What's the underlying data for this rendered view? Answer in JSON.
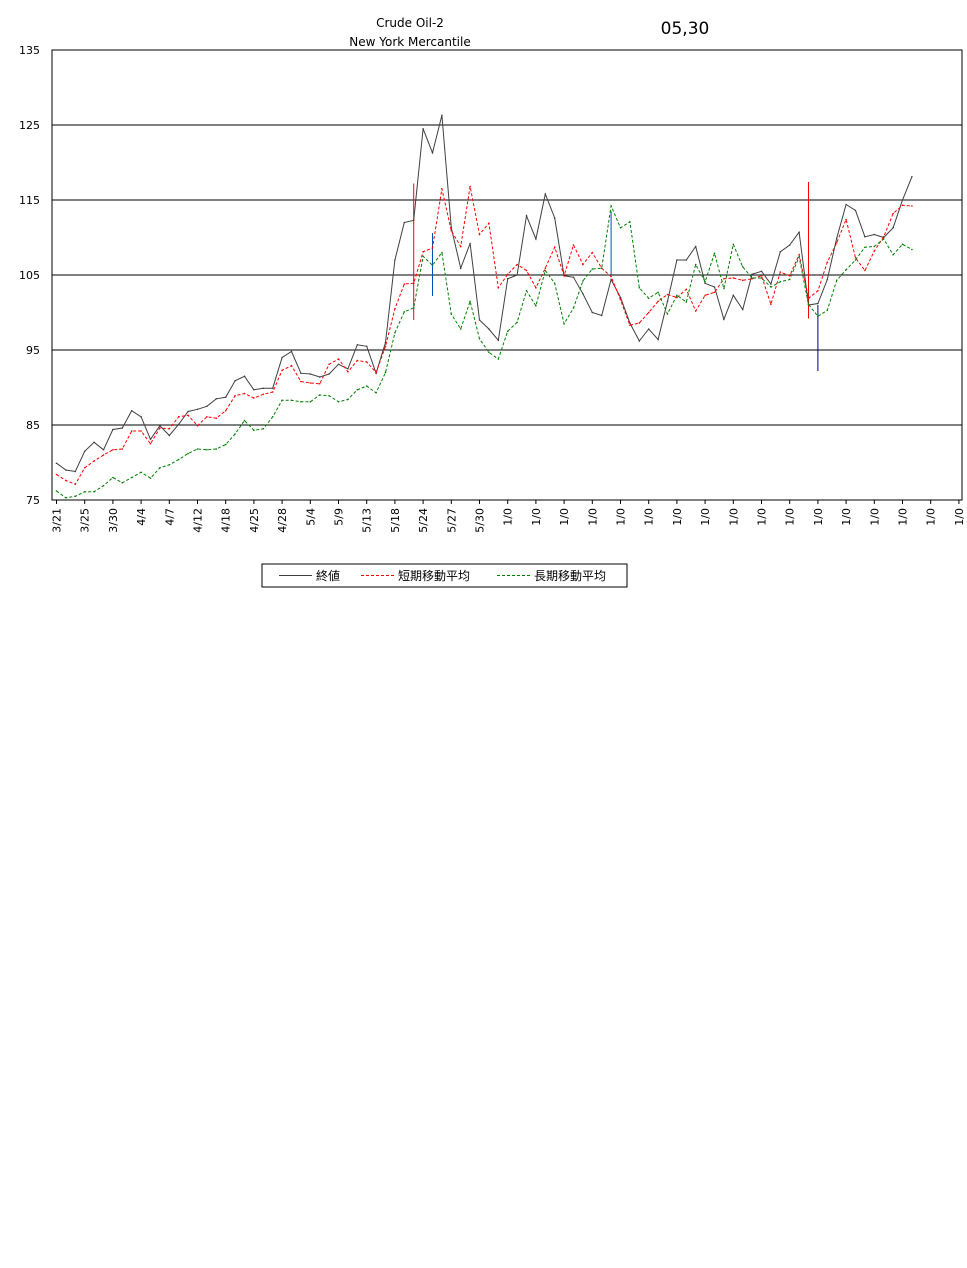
{
  "header": {
    "title": "Crude Oil-2",
    "subtitle": "New York Mercantile",
    "date": "05,30"
  },
  "chart_data": {
    "type": "line",
    "title": "Crude Oil-2",
    "subtitle": "New York Mercantile",
    "ylim": [
      75,
      135
    ],
    "yticks": [
      75,
      85,
      95,
      105,
      115,
      125,
      135
    ],
    "grid": true,
    "legend_position": "bottom",
    "x_tick_labels": [
      "3/21",
      "3/25",
      "3/30",
      "4/4",
      "4/7",
      "4/12",
      "4/18",
      "4/25",
      "4/28",
      "5/4",
      "5/9",
      "5/13",
      "5/18",
      "5/24",
      "5/27",
      "5/30",
      "1/0",
      "1/0",
      "1/0",
      "1/0",
      "1/0",
      "1/0",
      "1/0",
      "1/0",
      "1/0",
      "1/0",
      "1/0",
      "1/0",
      "1/0",
      "1/0",
      "1/0",
      "1/0",
      "1/0",
      "1/0"
    ],
    "series": [
      {
        "name": "終値",
        "color": "#404040",
        "style": "solid",
        "values": [
          79.9,
          79,
          78.8,
          81.5,
          82.7,
          81.7,
          84.4,
          84.6,
          86.9,
          86.1,
          83.1,
          84.9,
          83.6,
          85.1,
          86.8,
          87.1,
          87.5,
          88.5,
          88.7,
          90.9,
          91.5,
          89.7,
          89.9,
          89.9,
          94,
          94.8,
          91.9,
          91.8,
          91.4,
          91.8,
          93.1,
          92.5,
          95.7,
          95.5,
          91.9,
          96,
          107,
          112,
          112.3,
          124.5,
          121.3,
          126.3,
          111.3,
          105.9,
          109.2,
          99,
          97.8,
          96.3,
          104.5,
          105,
          112.9,
          109.8,
          115.8,
          112.6,
          104.9,
          104.7,
          102.5,
          100,
          99.6,
          104.4,
          102,
          98.6,
          96.2,
          97.8,
          96.4,
          101.5,
          107,
          107,
          108.8,
          103.9,
          103.4,
          99.1,
          102.3,
          100.4,
          105.1,
          105.5,
          103.8,
          108.1,
          109,
          110.7,
          101,
          101.2,
          104.4,
          109.9,
          114.4,
          113.6,
          110.1,
          110.4,
          110,
          111.3,
          115,
          118.1
        ]
      },
      {
        "name": "短期移動平均",
        "color": "#ff0000",
        "style": "dashed",
        "values": [
          78.4,
          77.6,
          77.1,
          79.3,
          80.2,
          81,
          81.7,
          81.8,
          84.2,
          84.2,
          82.5,
          84.6,
          84.5,
          86.1,
          86.3,
          84.9,
          86.1,
          85.9,
          86.9,
          88.9,
          89.2,
          88.6,
          89.1,
          89.4,
          92.3,
          92.9,
          90.8,
          90.6,
          90.5,
          93.1,
          93.8,
          92.1,
          93.6,
          93.4,
          92,
          95.5,
          100.5,
          103.8,
          103.9,
          108.1,
          108.6,
          116.5,
          110.9,
          108.8,
          116.8,
          110.4,
          111.9,
          103.3,
          105.1,
          106.4,
          105.6,
          103.3,
          105.9,
          108.7,
          104.9,
          109,
          106.4,
          108,
          105.9,
          104.8,
          101.7,
          98.3,
          98.6,
          100,
          101.5,
          102.4,
          102,
          103.1,
          100.2,
          102.3,
          102.7,
          104.5,
          104.6,
          104.3,
          104.5,
          104.9,
          101.1,
          105.4,
          104.9,
          107.7,
          101.9,
          102.9,
          106.7,
          109.3,
          112.4,
          107.3,
          105.6,
          108.2,
          110.1,
          113.2,
          114.3,
          114.2
        ]
      },
      {
        "name": "長期移動平均",
        "color": "#008000",
        "style": "dashed",
        "values": [
          76.2,
          75.3,
          75.5,
          76.1,
          76.1,
          76.9,
          78,
          77.3,
          78,
          78.7,
          77.9,
          79.3,
          79.7,
          80.4,
          81.2,
          81.8,
          81.7,
          81.8,
          82.4,
          83.8,
          85.6,
          84.3,
          84.5,
          86.1,
          88.3,
          88.3,
          88.1,
          88.1,
          89,
          88.9,
          88.1,
          88.4,
          89.7,
          90.2,
          89.3,
          92,
          97.3,
          100.1,
          100.6,
          107.5,
          106.3,
          108,
          99.8,
          97.8,
          101.5,
          96.5,
          94.7,
          93.8,
          97.5,
          98.7,
          102.9,
          100.9,
          105.6,
          103.9,
          98.5,
          100.6,
          104.2,
          105.8,
          105.9,
          114.2,
          111.3,
          112.1,
          103.3,
          101.9,
          102.7,
          99.8,
          102.3,
          101.4,
          106.4,
          104.1,
          107.9,
          103.2,
          109.1,
          106.1,
          104.6,
          104.6,
          103.4,
          104.1,
          104.4,
          107.4,
          101.1,
          99.5,
          100.3,
          104.3,
          105.7,
          107,
          108.7,
          108.8,
          109.8,
          107.7,
          109.1,
          108.4
        ]
      }
    ],
    "vertical_markers": [
      {
        "index": 38,
        "low": 99,
        "high": 117.2,
        "color": "#ff0000"
      },
      {
        "index": 40,
        "low": 102.2,
        "high": 110.6,
        "color": "#0050c0"
      },
      {
        "index": 59,
        "low": 105,
        "high": 113.5,
        "color": "#0050c0"
      },
      {
        "index": 80,
        "low": 99.2,
        "high": 117.4,
        "color": "#ff0000"
      },
      {
        "index": 81,
        "low": 92.2,
        "high": 101,
        "color": "#000080"
      }
    ]
  }
}
